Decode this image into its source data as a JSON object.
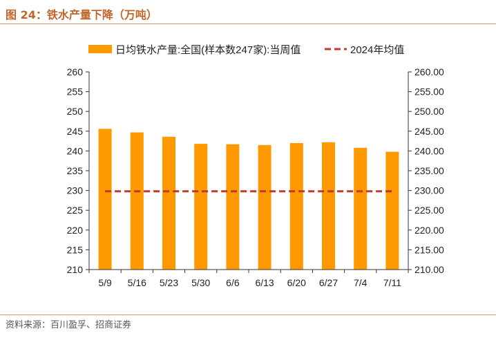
{
  "figure": {
    "title": "图 24：铁水产量下降（万吨）",
    "source": "资料来源：百川盈孚、招商证券"
  },
  "colors": {
    "bar": "#ff9900",
    "avg_line": "#c0392b",
    "accent": "#c0662a"
  },
  "chart_data": {
    "type": "bar",
    "categories": [
      "5/9",
      "5/16",
      "5/23",
      "5/30",
      "6/6",
      "6/13",
      "6/20",
      "6/27",
      "7/4",
      "7/11"
    ],
    "series": [
      {
        "name": "日均铁水产量:全国(样本数247家):当周值",
        "type": "bar",
        "axis": "left",
        "values": [
          245.6,
          244.7,
          243.6,
          241.8,
          241.7,
          241.5,
          242.0,
          242.2,
          240.8,
          239.8
        ]
      },
      {
        "name": "2024年均值",
        "type": "line",
        "style": "dashed",
        "axis": "left",
        "values": [
          229.8,
          229.8,
          229.8,
          229.8,
          229.8,
          229.8,
          229.8,
          229.8,
          229.8,
          229.8
        ]
      }
    ],
    "y_left": {
      "min": 210,
      "max": 260,
      "step": 5,
      "ticks": [
        "210",
        "215",
        "220",
        "225",
        "230",
        "235",
        "240",
        "245",
        "250",
        "255",
        "260"
      ]
    },
    "y_right": {
      "min": 210,
      "max": 260,
      "step": 5,
      "ticks": [
        "210.00",
        "215.00",
        "220.00",
        "225.00",
        "230.00",
        "235.00",
        "240.00",
        "245.00",
        "250.00",
        "255.00",
        "260.00"
      ]
    },
    "legend": {
      "position": "top"
    },
    "grid": false
  }
}
